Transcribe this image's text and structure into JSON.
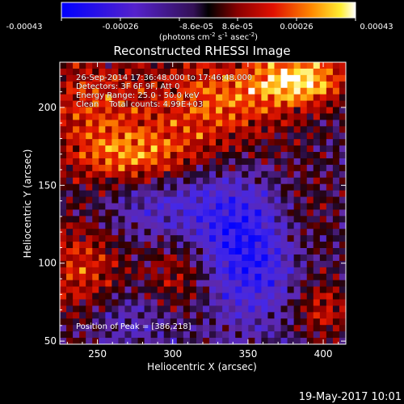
{
  "colorbar": {
    "ticks": [
      "-0.00043",
      "-0.00026",
      "-8.6e-05",
      "8.6e-05",
      "0.00026",
      "0.00043"
    ],
    "unit_label": "(photons cm",
    "unit_exp1": "-2",
    "unit_mid": " s",
    "unit_exp2": "-1",
    "unit_end": " asec",
    "unit_exp3": "-2",
    "unit_close": ")"
  },
  "footer": {
    "timestamp": "19-May-2017 10:01"
  },
  "chart_data": {
    "type": "heatmap",
    "title": "Reconstructed RHESSI Image",
    "xlabel": "Heliocentric X (arcsec)",
    "ylabel": "Heliocentric Y (arcsec)",
    "xlim": [
      225,
      415
    ],
    "ylim": [
      48,
      229
    ],
    "x_ticks": [
      250,
      300,
      350,
      400
    ],
    "y_ticks": [
      50,
      100,
      150,
      200
    ],
    "x_tick_labels": [
      "250",
      "300",
      "350",
      "400"
    ],
    "y_tick_labels": [
      "50",
      "100",
      "150",
      "200"
    ],
    "color_range": [
      -0.00043,
      0.00043
    ],
    "colormap": "blue-purple-red-orange-yellow-white",
    "info_lines": [
      "26-Sep-2014 17:36:48.000 to 17:46:48.000",
      "Detectors: 3F 6F 9F, Att 0",
      "Energy Range: 25.0 - 50.0 keV",
      "Clean    Total counts: 4.99E+03"
    ],
    "peak_label": "Position of Peak = [386,218]",
    "peak_position": [
      386,
      218
    ],
    "peak_value": 0.00043
  }
}
